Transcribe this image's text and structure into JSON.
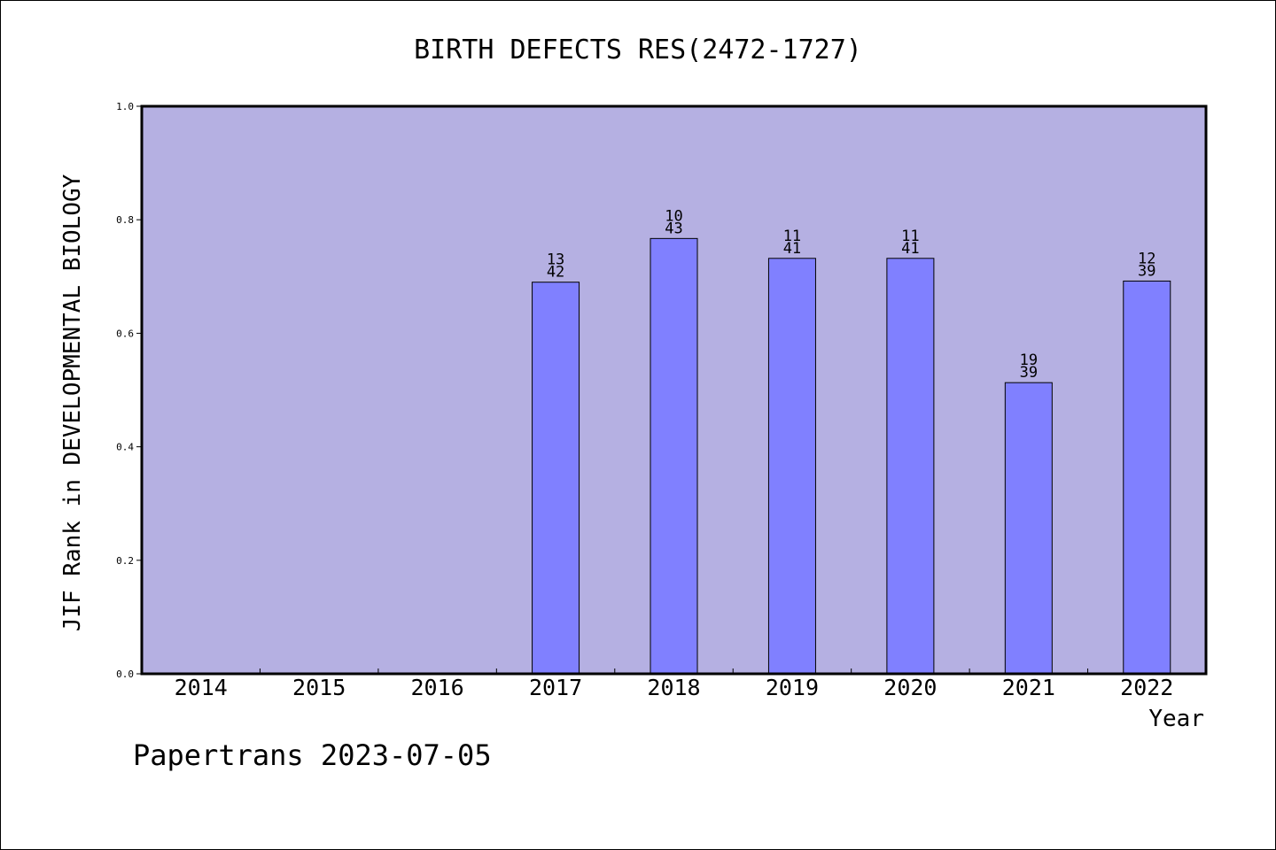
{
  "chart_data": {
    "type": "bar",
    "title": "BIRTH DEFECTS RES(2472-1727)",
    "xlabel": "Year",
    "ylabel": "JIF Rank in DEVELOPMENTAL BIOLOGY",
    "categories": [
      "2014",
      "2015",
      "2016",
      "2017",
      "2018",
      "2019",
      "2020",
      "2021",
      "2022"
    ],
    "values": [
      null,
      null,
      null,
      0.69,
      0.767,
      0.732,
      0.732,
      0.513,
      0.692
    ],
    "bar_labels": [
      null,
      null,
      null,
      [
        "13",
        "42"
      ],
      [
        "10",
        "43"
      ],
      [
        "11",
        "41"
      ],
      [
        "11",
        "41"
      ],
      [
        "19",
        "39"
      ],
      [
        "12",
        "39"
      ]
    ],
    "ylim": [
      0,
      1.0
    ],
    "yticks": [
      "0.0",
      "0.2",
      "0.4",
      "0.6",
      "0.8",
      "1.0"
    ],
    "grid": false,
    "colors": {
      "plot_background": "#b5b0e2",
      "bar_fill": "#8080ff",
      "bar_stroke": "#000000",
      "axis": "#000000"
    }
  },
  "footer": "Papertrans 2023-07-05"
}
